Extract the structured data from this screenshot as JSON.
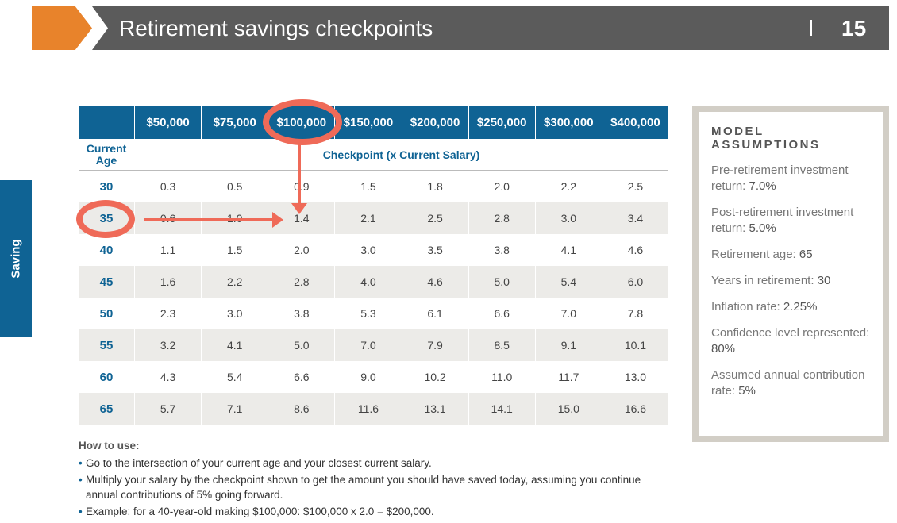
{
  "header": {
    "title": "Retirement savings checkpoints",
    "page_number": "15"
  },
  "side_tab": {
    "label": "Saving"
  },
  "table": {
    "salaries": [
      "$50,000",
      "$75,000",
      "$100,000",
      "$150,000",
      "$200,000",
      "$250,000",
      "$300,000",
      "$400,000"
    ],
    "age_label": "Current Age",
    "checkpoint_label": "Checkpoint (x Current Salary)",
    "rows": [
      {
        "age": "30",
        "values": [
          "0.3",
          "0.5",
          "0.9",
          "1.5",
          "1.8",
          "2.0",
          "2.2",
          "2.5"
        ]
      },
      {
        "age": "35",
        "values": [
          "0.6",
          "1.0",
          "1.4",
          "2.1",
          "2.5",
          "2.8",
          "3.0",
          "3.4"
        ]
      },
      {
        "age": "40",
        "values": [
          "1.1",
          "1.5",
          "2.0",
          "3.0",
          "3.5",
          "3.8",
          "4.1",
          "4.6"
        ]
      },
      {
        "age": "45",
        "values": [
          "1.6",
          "2.2",
          "2.8",
          "4.0",
          "4.6",
          "5.0",
          "5.4",
          "6.0"
        ]
      },
      {
        "age": "50",
        "values": [
          "2.3",
          "3.0",
          "3.8",
          "5.3",
          "6.1",
          "6.6",
          "7.0",
          "7.8"
        ]
      },
      {
        "age": "55",
        "values": [
          "3.2",
          "4.1",
          "5.0",
          "7.0",
          "7.9",
          "8.5",
          "9.1",
          "10.1"
        ]
      },
      {
        "age": "60",
        "values": [
          "4.3",
          "5.4",
          "6.6",
          "9.0",
          "10.2",
          "11.0",
          "11.7",
          "13.0"
        ]
      },
      {
        "age": "65",
        "values": [
          "5.7",
          "7.1",
          "8.6",
          "11.6",
          "13.1",
          "14.1",
          "15.0",
          "16.6"
        ]
      }
    ]
  },
  "how_to_use": {
    "title": "How to use:",
    "bullets": [
      "Go to the intersection of your current age and your closest current salary.",
      "Multiply your salary by the checkpoint shown to get the amount you should have saved today, assuming you continue annual contributions of 5% going forward.",
      "Example: for a 40-year-old making $100,000: $100,000 x 2.0 = $200,000."
    ]
  },
  "assumptions": {
    "title": "MODEL ASSUMPTIONS",
    "items": [
      {
        "label": "Pre-retirement investment return: ",
        "value": "7.0%"
      },
      {
        "label": "Post-retirement investment return: ",
        "value": "5.0%"
      },
      {
        "label": "Retirement age: ",
        "value": "65"
      },
      {
        "label": "Years in retirement: ",
        "value": "30"
      },
      {
        "label": "Inflation rate: ",
        "value": "2.25%"
      },
      {
        "label": "Confidence level represented: ",
        "value": "80%"
      },
      {
        "label": "Assumed annual contribution rate: ",
        "value": "5%"
      }
    ]
  },
  "colors": {
    "primary_blue": "#0f6394",
    "accent_orange": "#e8832b",
    "header_gray": "#5b5b5b",
    "highlight_red": "#ef6a58"
  }
}
